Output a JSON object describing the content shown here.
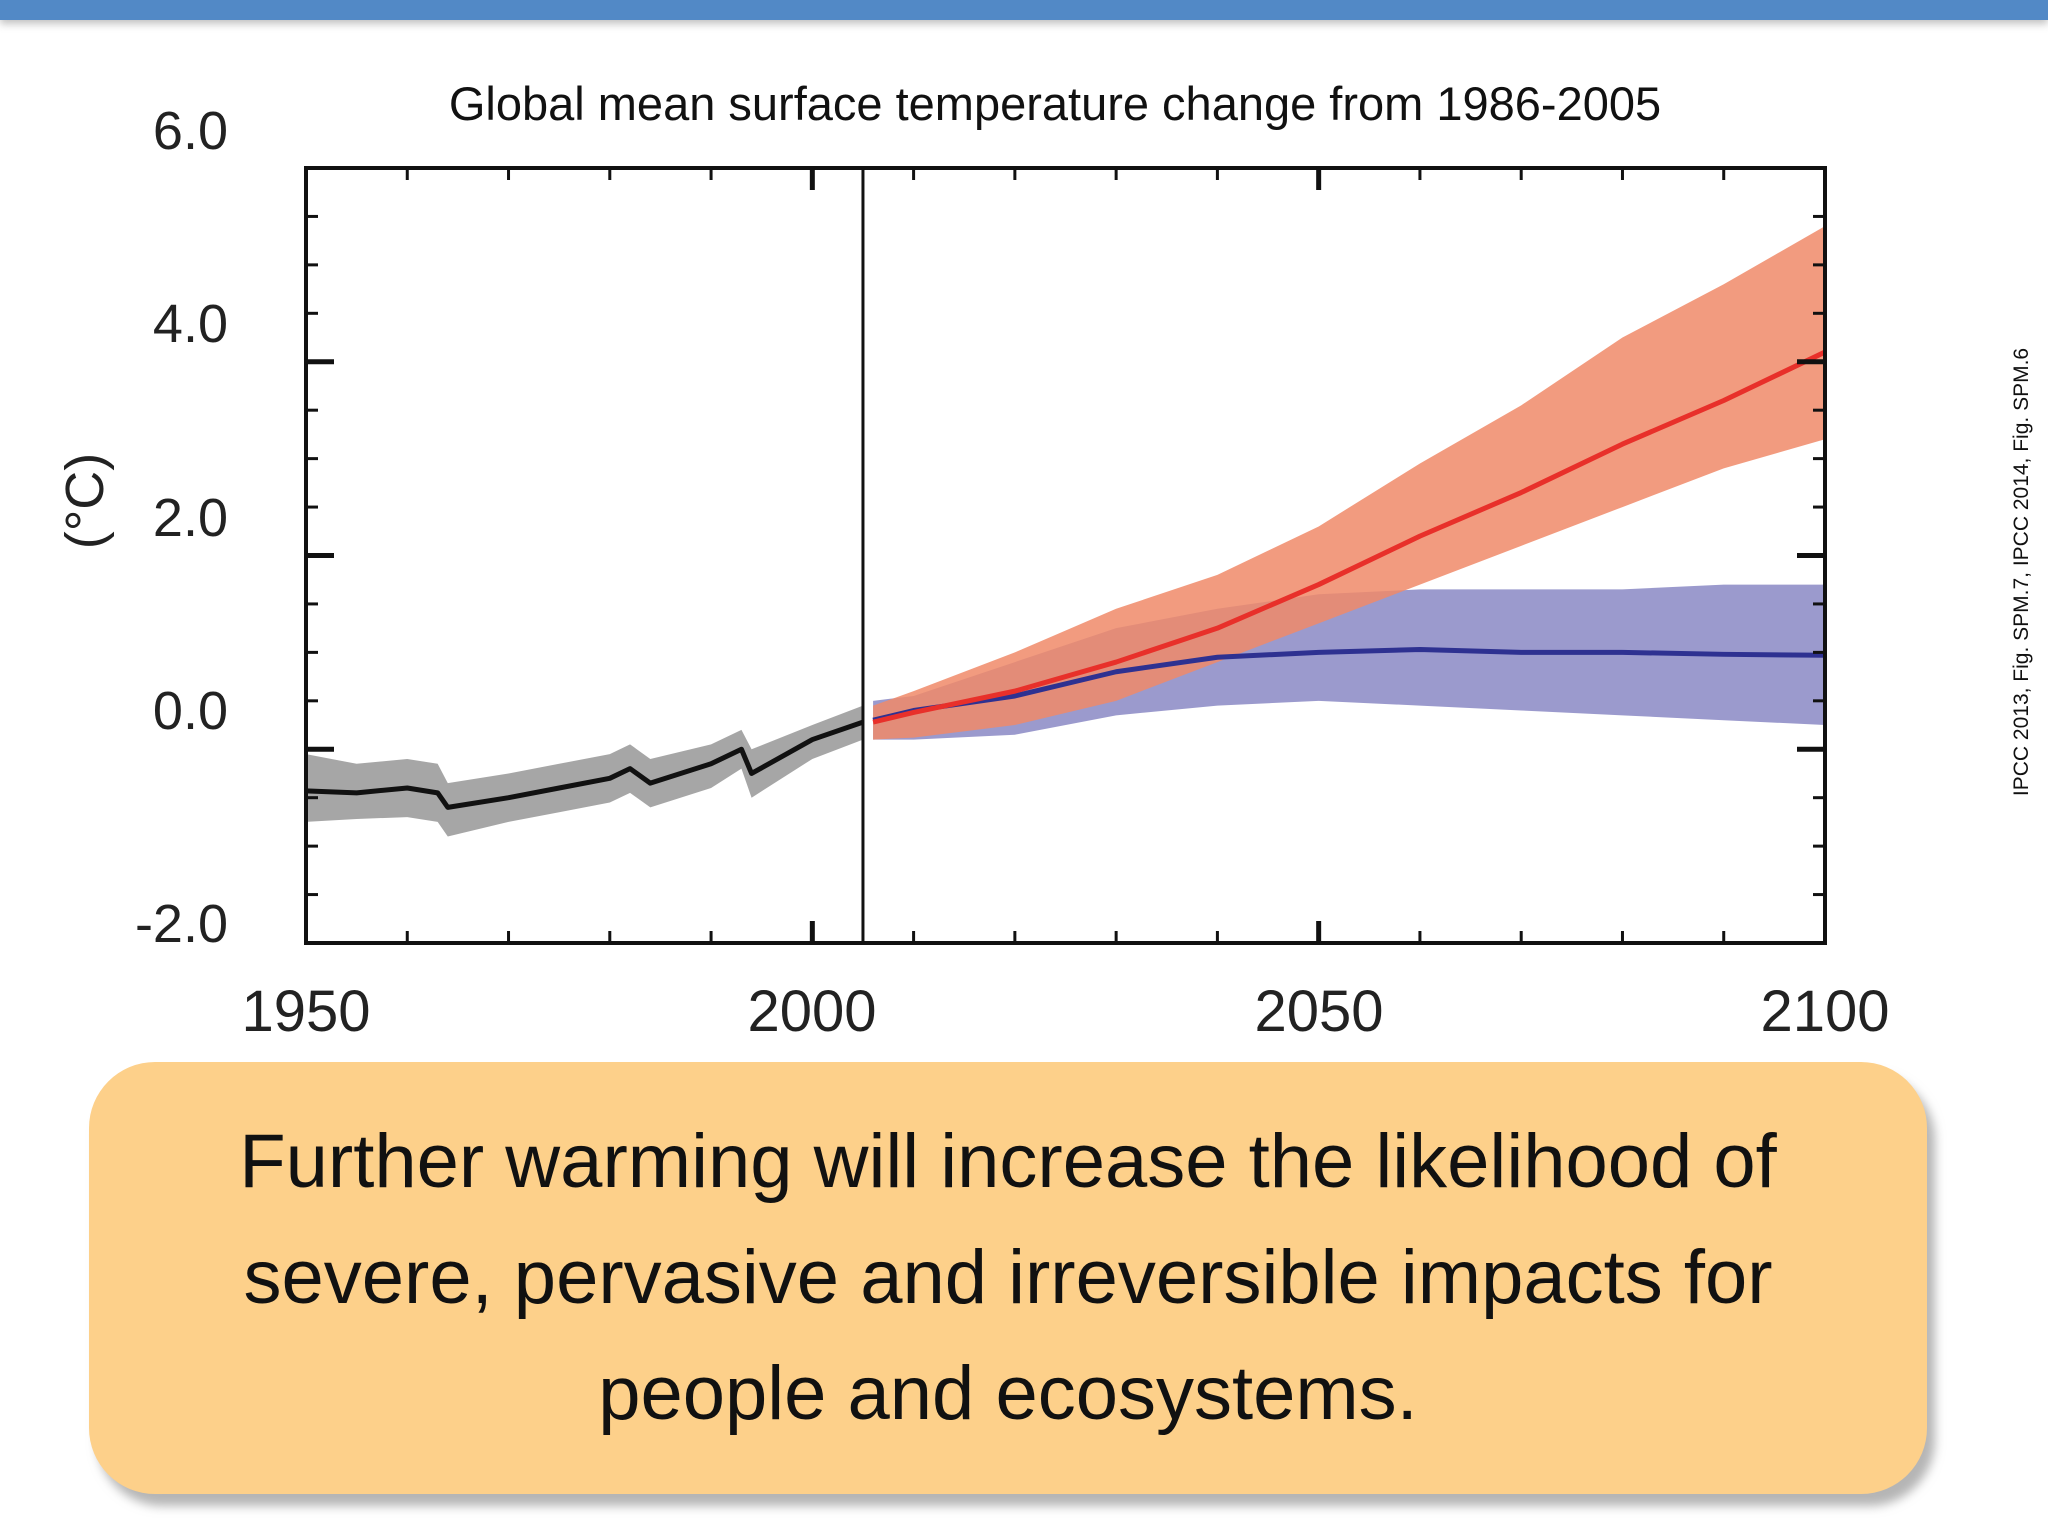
{
  "chart_data": {
    "type": "area",
    "title": "Global mean surface temperature change from 1986-2005",
    "ylabel": "(°C)",
    "xlabel": "",
    "xlim": [
      1950,
      2100
    ],
    "ylim": [
      -2.0,
      6.0
    ],
    "x_ticks": [
      "1950",
      "2000",
      "2050",
      "2100"
    ],
    "y_ticks": [
      "6.0",
      "4.0",
      "2.0",
      "0.0",
      "-2.0"
    ],
    "divider_year": 2005,
    "grid": false,
    "series": [
      {
        "color": "#111111",
        "band_color": "#a6a6a6",
        "x": [
          1950,
          1955,
          1960,
          1963,
          1964,
          1970,
          1975,
          1980,
          1982,
          1984,
          1990,
          1993,
          1994,
          2000,
          2005
        ],
        "mean": [
          -0.43,
          -0.45,
          -0.4,
          -0.45,
          -0.6,
          -0.5,
          -0.4,
          -0.3,
          -0.2,
          -0.35,
          -0.15,
          0.0,
          -0.25,
          0.1,
          0.28
        ],
        "low": [
          -0.75,
          -0.72,
          -0.7,
          -0.75,
          -0.9,
          -0.75,
          -0.65,
          -0.55,
          -0.45,
          -0.6,
          -0.4,
          -0.2,
          -0.5,
          -0.1,
          0.1
        ],
        "high": [
          -0.05,
          -0.15,
          -0.1,
          -0.15,
          -0.35,
          -0.25,
          -0.15,
          -0.05,
          0.05,
          -0.1,
          0.05,
          0.2,
          0.0,
          0.25,
          0.45
        ]
      },
      {
        "color": "#2e3191",
        "band_color": "#8a88c4",
        "x": [
          2006,
          2010,
          2020,
          2030,
          2040,
          2050,
          2060,
          2070,
          2080,
          2090,
          2100
        ],
        "mean": [
          0.3,
          0.4,
          0.55,
          0.8,
          0.95,
          1.0,
          1.03,
          1.0,
          1.0,
          0.98,
          0.97
        ],
        "low": [
          0.1,
          0.1,
          0.15,
          0.35,
          0.45,
          0.5,
          0.45,
          0.4,
          0.35,
          0.3,
          0.25
        ],
        "high": [
          0.5,
          0.55,
          0.9,
          1.25,
          1.45,
          1.6,
          1.65,
          1.65,
          1.65,
          1.7,
          1.7
        ]
      },
      {
        "color": "#e8302a",
        "band_color": "#f08a68",
        "x": [
          2006,
          2010,
          2020,
          2030,
          2040,
          2050,
          2060,
          2070,
          2080,
          2090,
          2100
        ],
        "mean": [
          0.28,
          0.38,
          0.6,
          0.9,
          1.25,
          1.7,
          2.2,
          2.65,
          3.15,
          3.6,
          4.1
        ],
        "low": [
          0.1,
          0.12,
          0.25,
          0.5,
          0.9,
          1.3,
          1.7,
          2.1,
          2.5,
          2.9,
          3.2
        ],
        "high": [
          0.45,
          0.6,
          1.0,
          1.45,
          1.8,
          2.3,
          2.95,
          3.55,
          4.25,
          4.8,
          5.4
        ]
      }
    ]
  },
  "credit": "IPCC 2013, Fig. SPM.7, IPCC 2014, Fig. SPM.6",
  "message": {
    "lines": [
      "Further warming will increase the likelihood of",
      "severe, pervasive and irreversible impacts for",
      "people and ecosystems."
    ]
  },
  "colors": {
    "top_bar": "#5289c6",
    "message_box": "#fdd08a"
  }
}
